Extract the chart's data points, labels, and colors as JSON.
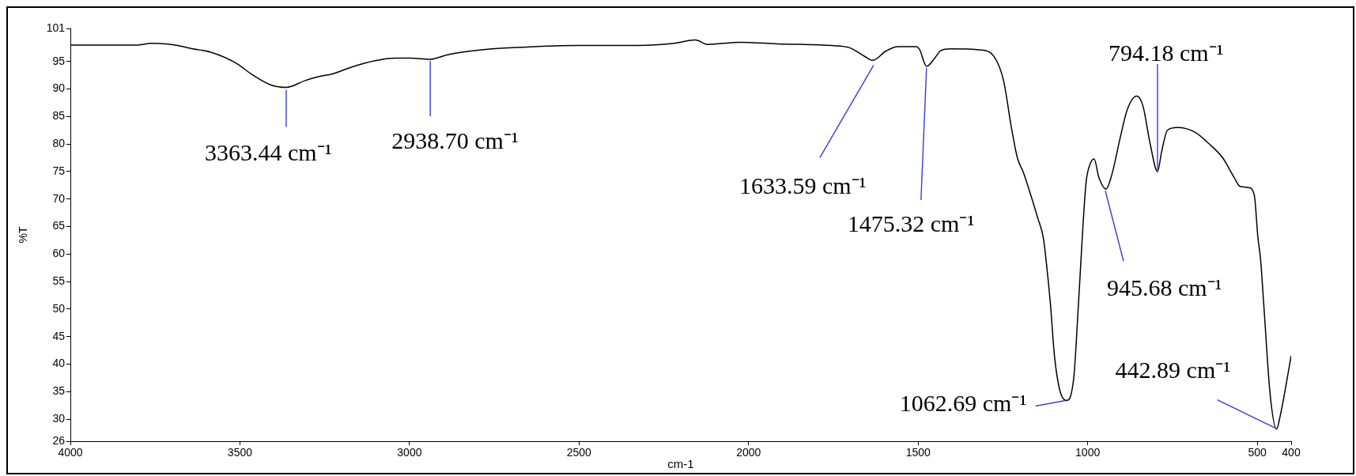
{
  "chart_data": {
    "type": "line",
    "xlabel": "cm-1",
    "ylabel": "%T",
    "x": [
      4000,
      3800,
      3760,
      3720,
      3684,
      3639,
      3586,
      3514,
      3461,
      3407,
      3363,
      3309,
      3264,
      3229,
      3175,
      3104,
      3041,
      2997,
      2939,
      2890,
      2818,
      2756,
      2668,
      2505,
      2326,
      2219,
      2157,
      2121,
      2023,
      1916,
      1755,
      1702,
      1657,
      1634,
      1595,
      1559,
      1505,
      1496,
      1475,
      1450,
      1433,
      1404,
      1316,
      1274,
      1248,
      1225,
      1207,
      1190,
      1147,
      1131,
      1122,
      1110,
      1098,
      1082,
      1063,
      1041,
      1028,
      1016,
      1005,
      992,
      981,
      967,
      946,
      929,
      904,
      883,
      855,
      837,
      816,
      794,
      782,
      765,
      736,
      685,
      643,
      602,
      568,
      551,
      526,
      509,
      498,
      490,
      480,
      462,
      443,
      433,
      400
    ],
    "values": [
      98.0,
      98.0,
      98.3,
      98.2,
      97.9,
      97.3,
      96.7,
      94.8,
      92.5,
      90.7,
      90.3,
      91.5,
      92.3,
      92.7,
      93.9,
      95.1,
      95.6,
      95.6,
      95.4,
      96.2,
      96.9,
      97.3,
      97.6,
      97.9,
      97.9,
      98.3,
      98.9,
      98.1,
      98.5,
      98.2,
      97.9,
      97.5,
      95.9,
      95.2,
      96.9,
      97.7,
      97.7,
      97.2,
      94.1,
      95.7,
      97.0,
      97.3,
      97.1,
      95.7,
      91.5,
      83.0,
      77.4,
      74.9,
      66.5,
      63.0,
      58.5,
      51.0,
      41.5,
      35.2,
      33.4,
      37.6,
      50.1,
      63.0,
      72.9,
      76.5,
      77.3,
      73.9,
      71.8,
      74.4,
      81.2,
      86.3,
      88.7,
      86.9,
      80.1,
      75.0,
      78.6,
      82.5,
      83.0,
      82.2,
      80.1,
      77.5,
      73.9,
      72.3,
      72.1,
      70.8,
      63.0,
      58.9,
      50.1,
      34.5,
      28.2,
      30.4,
      41.5
    ],
    "color": "#000000",
    "marker": "none",
    "xlim": [
      4000,
      400
    ],
    "xticks": [
      4000,
      3500,
      3000,
      2500,
      2000,
      1500,
      1000,
      500,
      400
    ],
    "ylim": [
      26,
      101
    ],
    "yticks": [
      101,
      95,
      90,
      85,
      80,
      75,
      70,
      65,
      60,
      55,
      50,
      45,
      40,
      35,
      30,
      26
    ],
    "annotations": [
      {
        "text": "3363.44 cm⁻¹",
        "x": 3363.44,
        "y": 90.3
      },
      {
        "text": "2938.70 cm⁻¹",
        "x": 2938.7,
        "y": 95.4
      },
      {
        "text": "1633.59 cm⁻¹",
        "x": 1633.59,
        "y": 95.2
      },
      {
        "text": "1475.32 cm⁻¹",
        "x": 1475.32,
        "y": 94.1
      },
      {
        "text": "1062.69 cm⁻¹",
        "x": 1062.69,
        "y": 33.4
      },
      {
        "text": "945.68 cm⁻¹",
        "x": 945.68,
        "y": 71.8
      },
      {
        "text": "794.18 cm⁻¹",
        "x": 794.18,
        "y": 75.0
      },
      {
        "text": "442.89 cm⁻¹",
        "x": 442.89,
        "y": 28.2
      }
    ]
  }
}
